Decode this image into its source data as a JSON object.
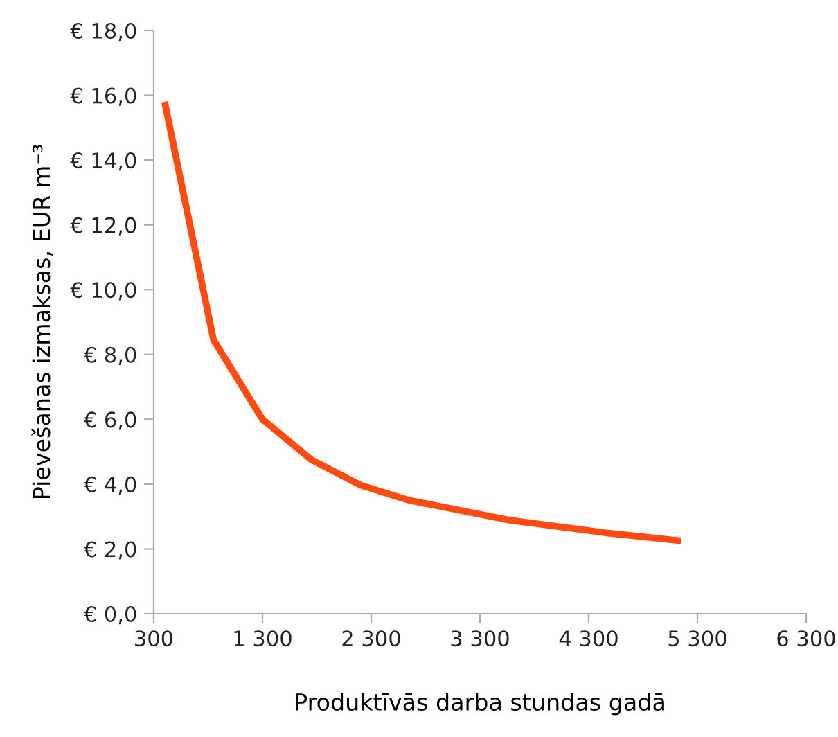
{
  "chart_data": {
    "type": "line",
    "xlabel": "Produktīvās darba stundas gadā",
    "ylabel": "Pievešanas izmaksas, EUR m⁻³",
    "x": [
      400,
      850,
      1300,
      1750,
      2200,
      2650,
      3100,
      3550,
      4000,
      4450,
      5150
    ],
    "series": [
      {
        "color": "#ff4a12",
        "values": [
          15.8,
          8.45,
          6.0,
          4.75,
          3.97,
          3.5,
          3.2,
          2.9,
          2.7,
          2.5,
          2.25
        ]
      }
    ],
    "xlim": [
      300,
      6300
    ],
    "xticks": [
      {
        "value": 300,
        "label": "300"
      },
      {
        "value": 1300,
        "label": "1 300"
      },
      {
        "value": 2300,
        "label": "2 300"
      },
      {
        "value": 3300,
        "label": "3 300"
      },
      {
        "value": 4300,
        "label": "4 300"
      },
      {
        "value": 5300,
        "label": "5 300"
      },
      {
        "value": 6300,
        "label": "6 300"
      }
    ],
    "ylim": [
      0,
      18
    ],
    "yticks": [
      {
        "value": 0,
        "label": "€ 0,0"
      },
      {
        "value": 2,
        "label": "€ 2,0"
      },
      {
        "value": 4,
        "label": "€ 4,0"
      },
      {
        "value": 6,
        "label": "€ 6,0"
      },
      {
        "value": 8,
        "label": "€ 8,0"
      },
      {
        "value": 10,
        "label": "€ 10,0"
      },
      {
        "value": 12,
        "label": "€ 12,0"
      },
      {
        "value": 14,
        "label": "€ 14,0"
      },
      {
        "value": 16,
        "label": "€ 16,0"
      },
      {
        "value": 18,
        "label": "€ 18,0"
      }
    ],
    "grid": false,
    "legend": false,
    "marker": "none",
    "line_style": "solid"
  }
}
